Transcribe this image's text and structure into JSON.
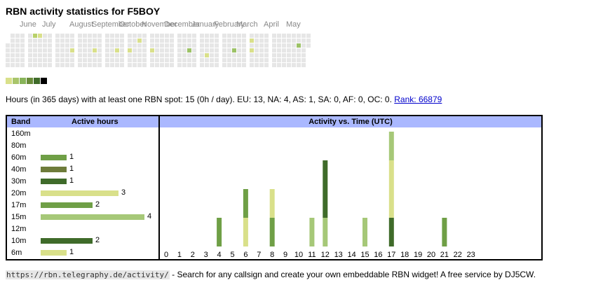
{
  "title": "RBN activity statistics for F5BOY",
  "heatmap": {
    "months": [
      "June",
      "July",
      "August",
      "September",
      "October",
      "November",
      "December",
      "January",
      "February",
      "March",
      "April",
      "May"
    ],
    "month_week_start": [
      0,
      4,
      9,
      13,
      18,
      22,
      26,
      31,
      35,
      39,
      44,
      48
    ],
    "total_weeks": 53,
    "first_week_start_row": 2,
    "last_week_end_row": 2,
    "active_days": [
      {
        "week": 5,
        "day": 0,
        "level": 2
      },
      {
        "week": 6,
        "day": 0,
        "level": 1
      },
      {
        "week": 12,
        "day": 3,
        "level": 1
      },
      {
        "week": 16,
        "day": 3,
        "level": 1
      },
      {
        "week": 20,
        "day": 3,
        "level": 1
      },
      {
        "week": 22,
        "day": 3,
        "level": 1
      },
      {
        "week": 24,
        "day": 1,
        "level": 1
      },
      {
        "week": 26,
        "day": 3,
        "level": 1
      },
      {
        "week": 33,
        "day": 3,
        "level": 3
      },
      {
        "week": 36,
        "day": 4,
        "level": 1
      },
      {
        "week": 41,
        "day": 3,
        "level": 3
      },
      {
        "week": 44,
        "day": 1,
        "level": 1
      },
      {
        "week": 44,
        "day": 3,
        "level": 1
      },
      {
        "week": 53,
        "day": 2,
        "level": 3
      }
    ],
    "today": {
      "week": 55,
      "day": 3
    }
  },
  "legend_colors": [
    "#d9e08a",
    "#a8c56a",
    "#88b45a",
    "#6a8c3a",
    "#3f6b2a",
    "#000000"
  ],
  "colors": {
    "empty": "#e6e6e6",
    "level1": "#d9e08a",
    "level2": "#b8d06a",
    "level3": "#9cc266",
    "today_border": "#cc0000"
  },
  "summary": {
    "text": "Hours (in 365 days) with at least one RBN spot: 15 (0h / day). EU: 13, NA: 4, AS: 1, SA: 0, AF: 0, OC: 0.",
    "rank_link": "Rank: 66879"
  },
  "band_table": {
    "header_band": "Band",
    "header_hours": "Active hours",
    "rows": [
      {
        "band": "160m",
        "hours": null,
        "color": ""
      },
      {
        "band": "80m",
        "hours": null,
        "color": ""
      },
      {
        "band": "60m",
        "hours": 1,
        "color": "#6f9f46"
      },
      {
        "band": "40m",
        "hours": 1,
        "color": "#6e7c3a"
      },
      {
        "band": "30m",
        "hours": 1,
        "color": "#3f6b2a"
      },
      {
        "band": "20m",
        "hours": 3,
        "color": "#d9e08a"
      },
      {
        "band": "17m",
        "hours": 2,
        "color": "#6f9f46"
      },
      {
        "band": "15m",
        "hours": 4,
        "color": "#a6c878"
      },
      {
        "band": "12m",
        "hours": null,
        "color": ""
      },
      {
        "band": "10m",
        "hours": 2,
        "color": "#3f6b2a"
      },
      {
        "band": "6m",
        "hours": 1,
        "color": "#d9e08a"
      }
    ]
  },
  "chart_data": {
    "type": "bar",
    "title": "Activity vs. Time (UTC)",
    "categories": [
      "0",
      "1",
      "2",
      "3",
      "4",
      "5",
      "6",
      "7",
      "8",
      "9",
      "10",
      "11",
      "12",
      "13",
      "14",
      "15",
      "16",
      "17",
      "18",
      "19",
      "20",
      "21",
      "22",
      "23"
    ],
    "stacked": true,
    "stacks": [
      {
        "hour": 4,
        "segments": [
          {
            "color": "#6f9f46",
            "value": 1
          }
        ]
      },
      {
        "hour": 6,
        "segments": [
          {
            "color": "#d9e08a",
            "value": 1
          },
          {
            "color": "#6f9f46",
            "value": 1
          }
        ]
      },
      {
        "hour": 8,
        "segments": [
          {
            "color": "#6f9f46",
            "value": 1
          },
          {
            "color": "#d9e08a",
            "value": 1
          }
        ]
      },
      {
        "hour": 11,
        "segments": [
          {
            "color": "#a6c878",
            "value": 1
          }
        ]
      },
      {
        "hour": 12,
        "segments": [
          {
            "color": "#a6c878",
            "value": 1
          },
          {
            "color": "#3f6b2a",
            "value": 2
          }
        ]
      },
      {
        "hour": 15,
        "segments": [
          {
            "color": "#a6c878",
            "value": 1
          }
        ]
      },
      {
        "hour": 17,
        "segments": [
          {
            "color": "#3f6b2a",
            "value": 1
          },
          {
            "color": "#d9e08a",
            "value": 2
          },
          {
            "color": "#a6c878",
            "value": 1
          }
        ]
      },
      {
        "hour": 21,
        "segments": [
          {
            "color": "#6f9f46",
            "value": 1
          }
        ]
      }
    ],
    "ylim": [
      0,
      3.1
    ]
  },
  "footer": {
    "url": "https://rbn.telegraphy.de/activity/",
    "text": " - Search for any callsign and create your own embeddable RBN widget! A free service by DJ5CW."
  }
}
